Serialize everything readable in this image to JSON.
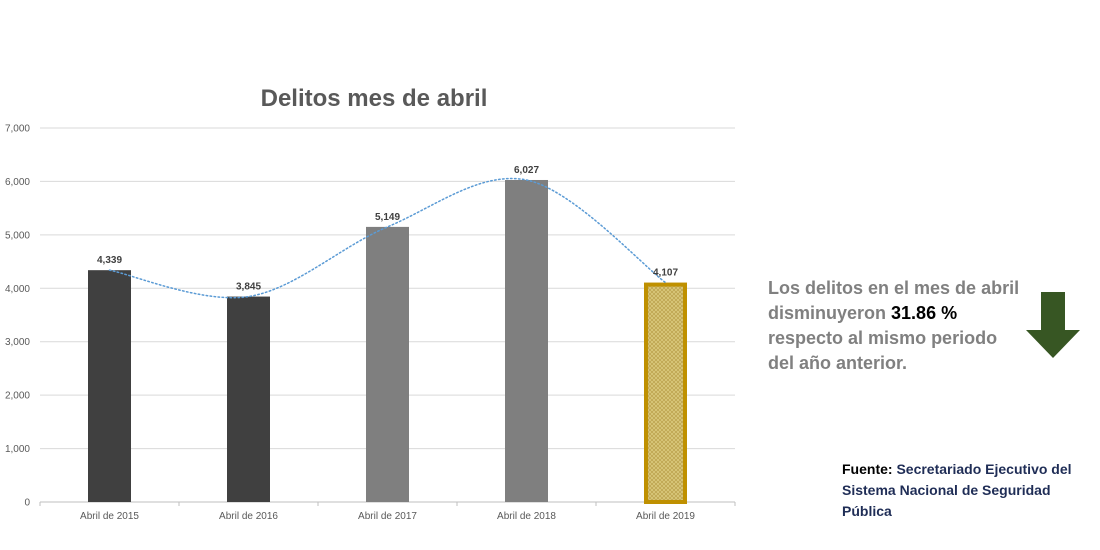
{
  "chart_data": {
    "type": "bar",
    "title": "Delitos mes de abril",
    "categories": [
      "Abril de 2015",
      "Abril de 2016",
      "Abril de 2017",
      "Abril de 2018",
      "Abril de 2019"
    ],
    "values": [
      4339,
      3845,
      5149,
      6027,
      4107
    ],
    "value_labels": [
      "4,339",
      "3,845",
      "5,149",
      "6,027",
      "4,107"
    ],
    "ylim": [
      0,
      7000
    ],
    "yticks": [
      0,
      1000,
      2000,
      3000,
      4000,
      5000,
      6000,
      7000
    ],
    "ytick_labels": [
      "0",
      "1,000",
      "2,000",
      "3,000",
      "4,000",
      "5,000",
      "6,000",
      "7,000"
    ],
    "bar_colors": [
      "#404040",
      "#404040",
      "#7f7f7f",
      "#7f7f7f",
      "#d9c77a"
    ],
    "highlight_border_color": "#bf9000",
    "trendline": "smooth dotted line through bar tops",
    "trendline_color": "#5b9bd5",
    "gridlines": true,
    "xlabel": "",
    "ylabel": ""
  },
  "note": {
    "text_before": "Los delitos en el mes de abril disminuyeron ",
    "percent": "31.86 %",
    "text_after": " respecto al mismo periodo del año anterior."
  },
  "indicator": {
    "icon": "down-arrow-icon",
    "color": "#375623"
  },
  "source": {
    "label": "Fuente:",
    "text": "Secretariado Ejecutivo del Sistema Nacional de Seguridad Pública"
  }
}
